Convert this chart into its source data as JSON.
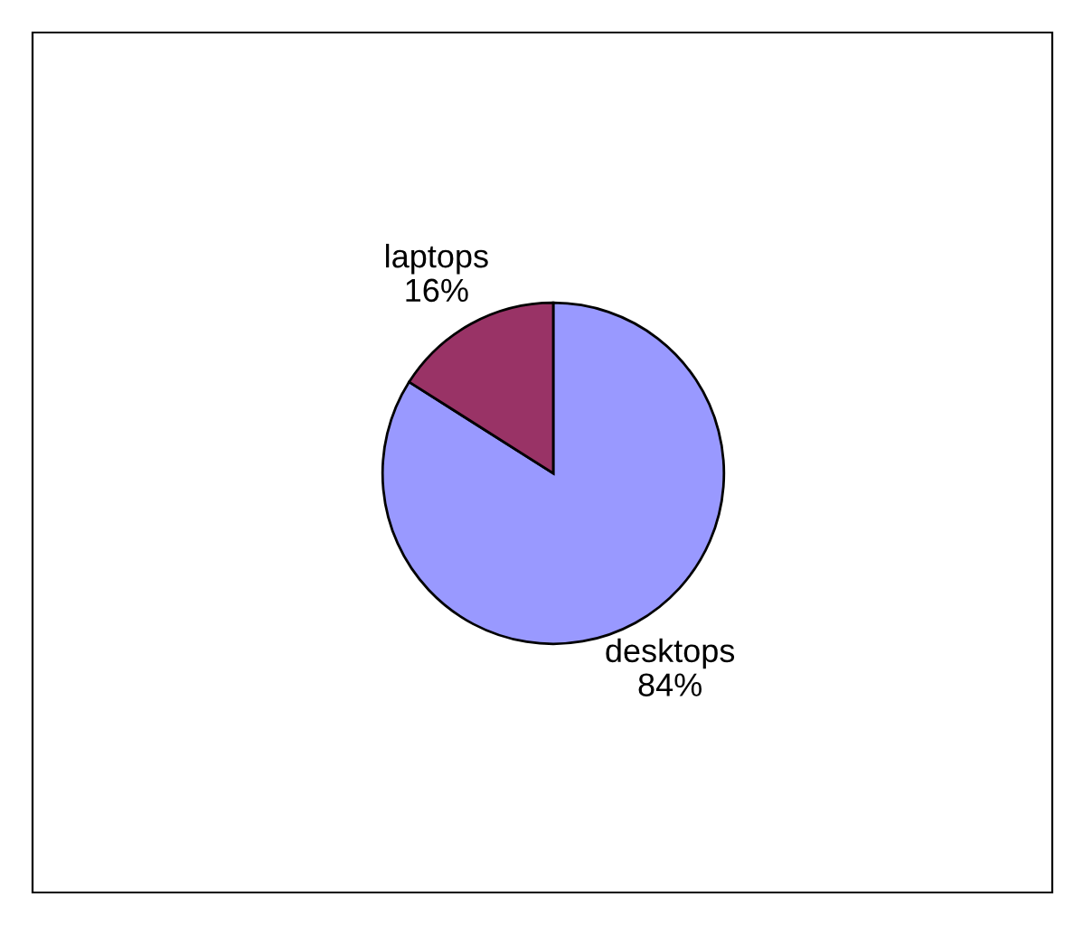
{
  "chart_data": {
    "type": "pie",
    "categories": [
      "desktops",
      "laptops"
    ],
    "values": [
      84,
      16
    ],
    "value_labels": [
      "84%",
      "16%"
    ],
    "colors": [
      "#9999ff",
      "#993366"
    ]
  }
}
